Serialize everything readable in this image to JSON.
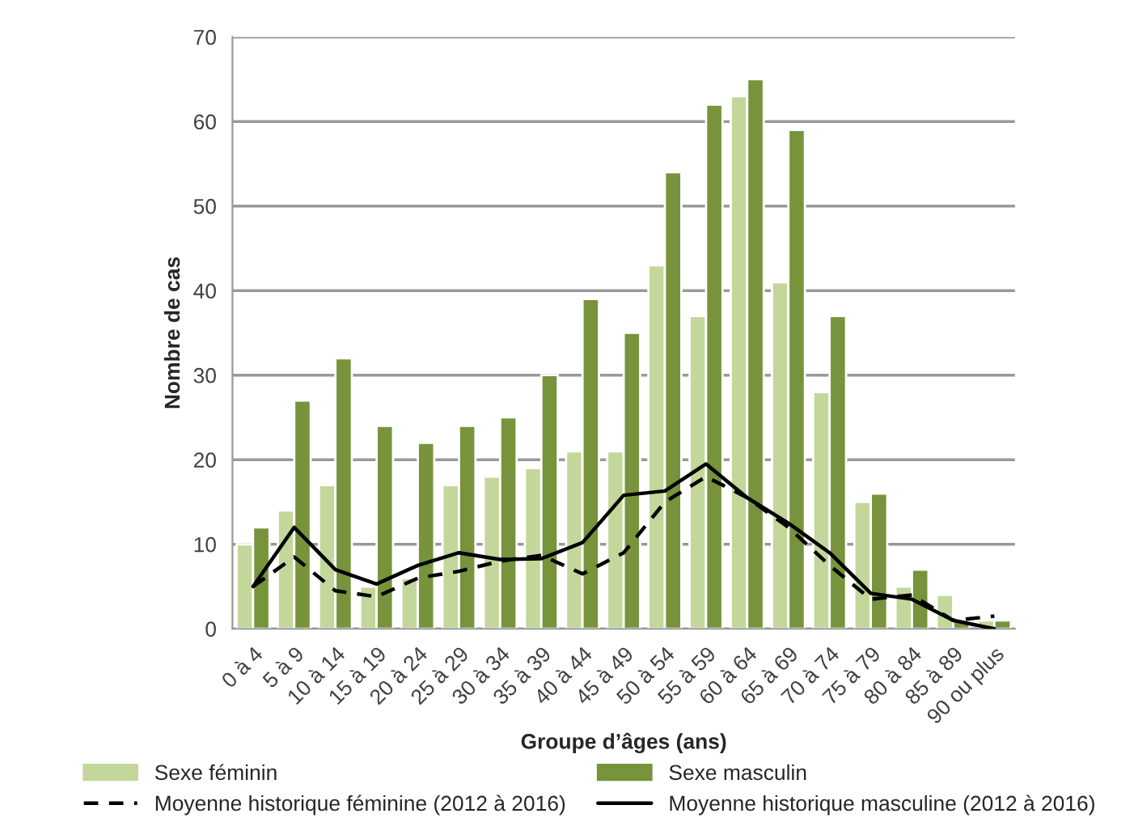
{
  "chart_data": {
    "type": "bar",
    "xlabel": "Groupe d’âges (ans)",
    "ylabel": "Nombre de cas",
    "categories": [
      "0 à 4",
      "5 à 9",
      "10 à 14",
      "15 à 19",
      "20 à 24",
      "25 à 29",
      "30 à 34",
      "35 à 39",
      "40 à 44",
      "45 à 49",
      "50 à 54",
      "55 à 59",
      "60 à 64",
      "65 à 69",
      "70 à 74",
      "75 à 79",
      "80 à 84",
      "85 à 89",
      "90 ou plus"
    ],
    "series": [
      {
        "name": "Sexe féminin",
        "color": "#c4d79b",
        "values": [
          10,
          14,
          17,
          5,
          6,
          17,
          18,
          19,
          21,
          21,
          43,
          37,
          63,
          41,
          28,
          15,
          5,
          4,
          1
        ]
      },
      {
        "name": "Sexe masculin",
        "color": "#77933c",
        "values": [
          12,
          27,
          32,
          24,
          22,
          24,
          25,
          30,
          39,
          35,
          54,
          62,
          65,
          59,
          37,
          16,
          7,
          1,
          1
        ]
      },
      {
        "name": "Moyenne historique féminine (2012 à 2016)",
        "type": "line",
        "color": "#000000",
        "line_style": "dashed",
        "values": [
          5,
          8.5,
          4.5,
          3.8,
          6,
          6.8,
          8,
          8.7,
          6.5,
          9,
          15,
          18,
          15.5,
          12,
          7.5,
          3.5,
          4,
          1,
          1.5
        ]
      },
      {
        "name": "Moyenne historique masculine (2012 à 2016)",
        "type": "line",
        "color": "#000000",
        "line_style": "solid",
        "values": [
          5,
          12,
          7,
          5.3,
          7.5,
          9,
          8.2,
          8.3,
          10.2,
          15.8,
          16.3,
          19.5,
          15.5,
          12.5,
          9,
          4.2,
          3.5,
          1,
          0
        ]
      }
    ],
    "ylim": [
      0,
      70
    ],
    "yticks": [
      0,
      10,
      20,
      30,
      40,
      50,
      60,
      70
    ],
    "grid": "y",
    "legend": "bottom"
  }
}
